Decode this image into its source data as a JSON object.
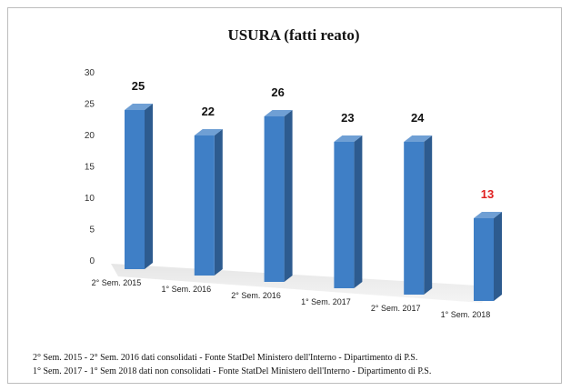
{
  "chart_data": {
    "type": "bar",
    "title": "USURA (fatti reato)",
    "categories": [
      "2° Sem. 2015",
      "1° Sem. 2016",
      "2° Sem. 2016",
      "1° Sem. 2017",
      "2° Sem. 2017",
      "1° Sem. 2018"
    ],
    "values": [
      25,
      22,
      26,
      23,
      24,
      13
    ],
    "ylim": [
      0,
      30
    ],
    "yticks": [
      0,
      5,
      10,
      15,
      20,
      25,
      30
    ],
    "grid": false,
    "bar_color": "#3f7fc6",
    "label_color": "#111111",
    "highlight_label_color": "#e02020",
    "highlight_index": 5
  },
  "notes": {
    "line1": "2° Sem. 2015 - 2° Sem. 2016 dati consolidati - Fonte StatDel Ministero dell'Interno - Dipartimento di P.S.",
    "line2": "1° Sem. 2017 - 1° Sem 2018 dati non consolidati - Fonte StatDel Ministero dell'Interno - Dipartimento di P.S."
  }
}
